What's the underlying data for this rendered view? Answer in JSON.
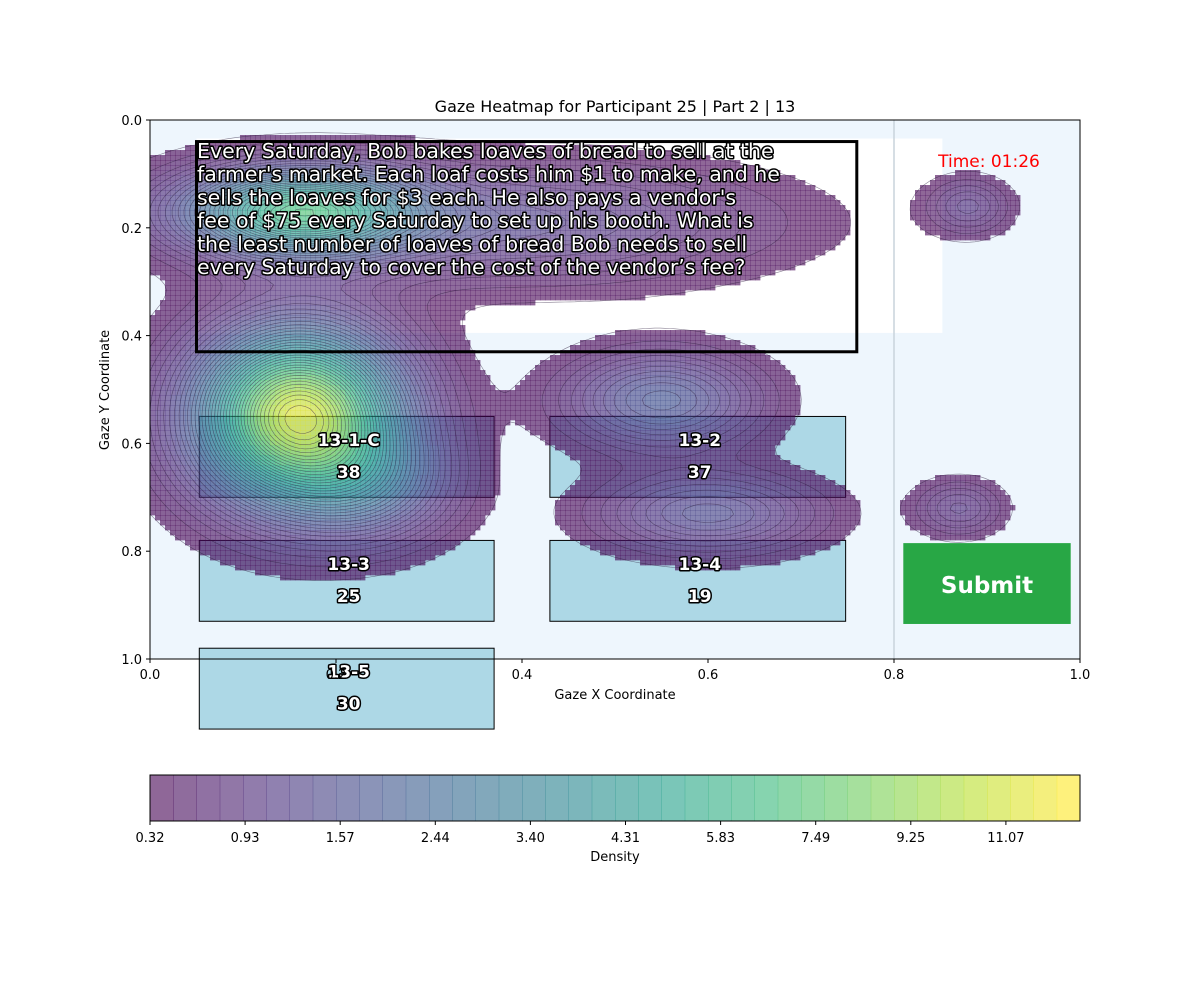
{
  "chart_data": {
    "type": "heatmap",
    "title": "Gaze Heatmap for Participant 25 | Part 2 | 13",
    "xlabel": "Gaze X Coordinate",
    "ylabel": "Gaze Y Coordinate",
    "xlim": [
      0.0,
      1.0
    ],
    "ylim": [
      1.0,
      0.0
    ],
    "y_inverted": true,
    "x_ticks": [
      "0.0",
      "0.2",
      "0.4",
      "0.6",
      "0.8",
      "1.0"
    ],
    "y_ticks": [
      "0.0",
      "0.2",
      "0.4",
      "0.6",
      "0.8",
      "1.0"
    ],
    "question_text": [
      "Every Saturday, Bob bakes loaves of bread to sell at the",
      "farmer's market. Each loaf costs him $1 to make, and he",
      "sells the loaves for $3 each. He also pays a vendor's",
      "fee of $75 every Saturday to set up his booth. What is",
      "the least number of loaves of bread Bob needs to sell",
      "every Saturday to cover the cost of the vendor’s fee?"
    ],
    "timer_text": "Time: 01:26",
    "submit_label": "Submit",
    "answer_options": [
      {
        "label": "13-1-C",
        "count": "38",
        "x0": 0.053,
        "x1": 0.37,
        "y0": 0.55,
        "y1": 0.7
      },
      {
        "label": "13-2",
        "count": "37",
        "x0": 0.43,
        "x1": 0.748,
        "y0": 0.55,
        "y1": 0.7
      },
      {
        "label": "13-3",
        "count": "25",
        "x0": 0.053,
        "x1": 0.37,
        "y0": 0.78,
        "y1": 0.93
      },
      {
        "label": "13-4",
        "count": "19",
        "x0": 0.43,
        "x1": 0.748,
        "y0": 0.78,
        "y1": 0.93
      },
      {
        "label": "13-5",
        "count": "30",
        "x0": 0.053,
        "x1": 0.37,
        "y0": 0.98,
        "y1": 1.13
      }
    ],
    "question_box": {
      "x0": 0.05,
      "x1": 0.76,
      "y0": 0.04,
      "y1": 0.43
    },
    "submit_box": {
      "x0": 0.81,
      "x1": 0.99,
      "y0": 0.785,
      "y1": 0.935
    },
    "divider_x": 0.8,
    "density_blobs": [
      {
        "cx": 0.16,
        "cy": 0.55,
        "sx": 0.075,
        "sy": 0.11,
        "peak": 12.0
      },
      {
        "cx": 0.24,
        "cy": 0.68,
        "sx": 0.06,
        "sy": 0.07,
        "peak": 2.4
      },
      {
        "cx": 0.16,
        "cy": 0.17,
        "sx": 0.085,
        "sy": 0.055,
        "peak": 8.0
      },
      {
        "cx": 0.4,
        "cy": 0.19,
        "sx": 0.18,
        "sy": 0.075,
        "peak": 2.2
      },
      {
        "cx": 0.55,
        "cy": 0.52,
        "sx": 0.07,
        "sy": 0.06,
        "peak": 3.2
      },
      {
        "cx": 0.6,
        "cy": 0.73,
        "sx": 0.08,
        "sy": 0.05,
        "peak": 2.6
      },
      {
        "cx": 0.88,
        "cy": 0.16,
        "sx": 0.03,
        "sy": 0.035,
        "peak": 1.6
      },
      {
        "cx": 0.87,
        "cy": 0.72,
        "sx": 0.032,
        "sy": 0.035,
        "peak": 1.6
      }
    ],
    "colorbar": {
      "label": "Density",
      "min": 0.32,
      "max": 12.5,
      "tick_labels": [
        "0.32",
        "0.93",
        "1.57",
        "2.44",
        "3.40",
        "4.31",
        "5.83",
        "7.49",
        "9.25",
        "11.07"
      ],
      "colormap": "viridis"
    }
  }
}
